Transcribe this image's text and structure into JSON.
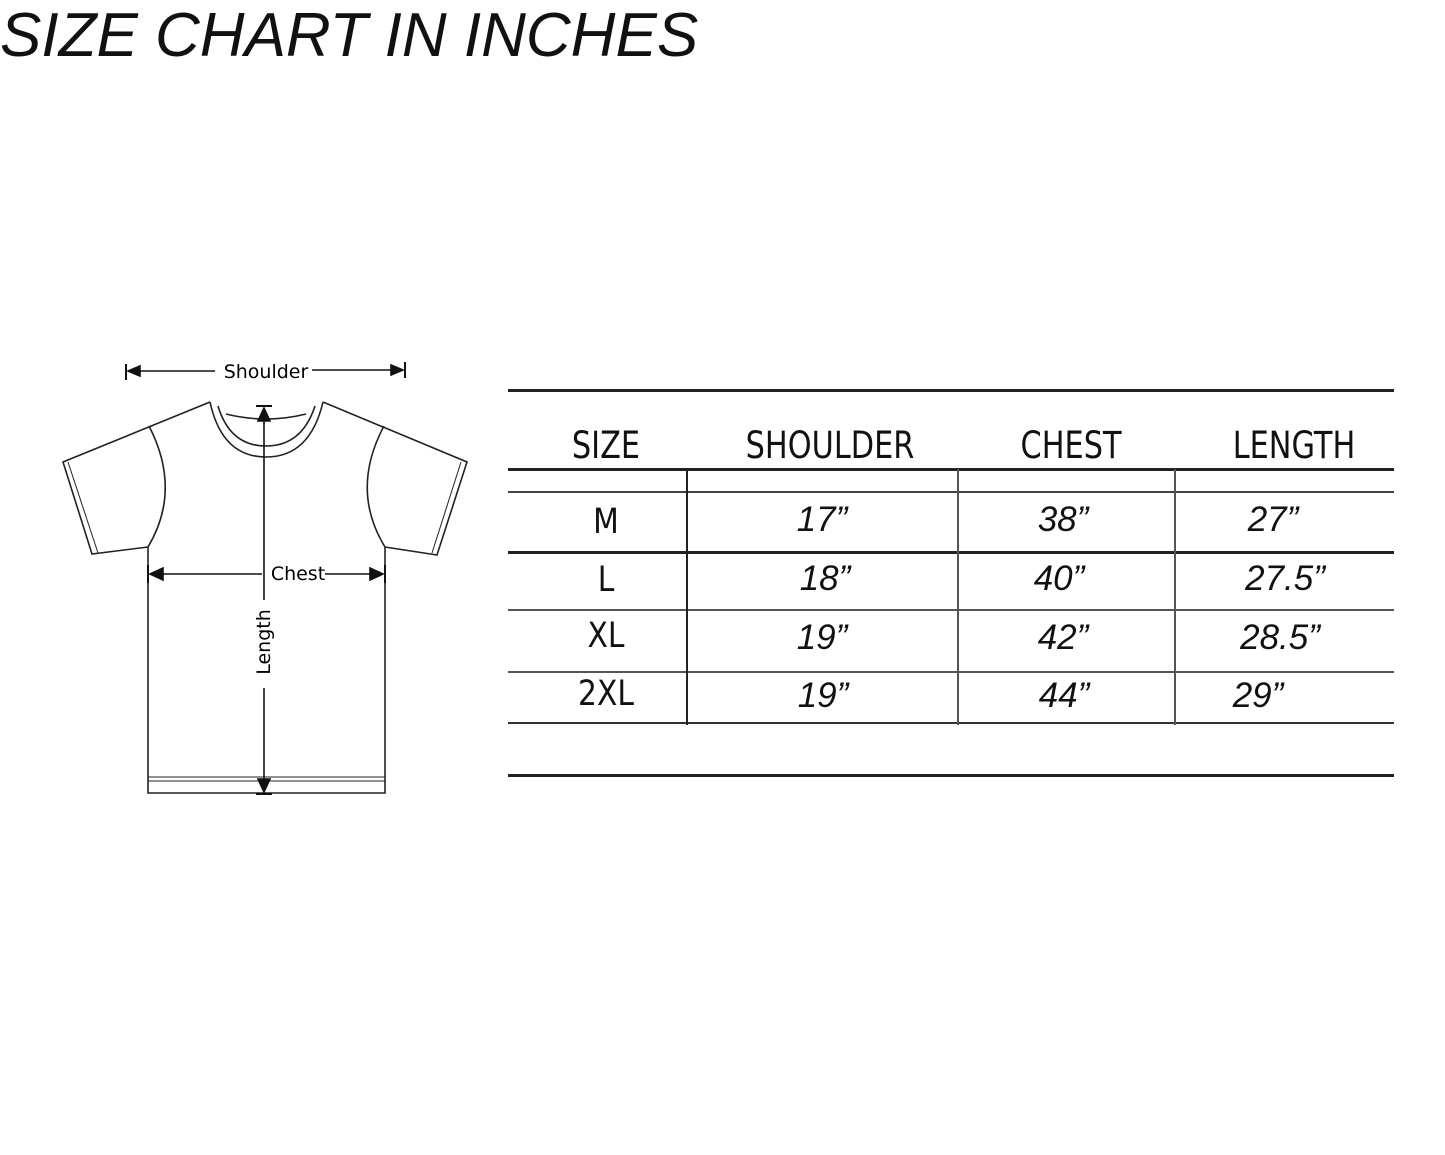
{
  "title": "SIZE CHART IN INCHES",
  "diagram": {
    "shoulder_label": "Shoulder",
    "chest_label": "Chest",
    "length_label": "Length"
  },
  "table": {
    "headers": [
      "SIZE",
      "SHOULDER",
      "CHEST",
      "LENGTH"
    ],
    "rows": [
      {
        "size": "M",
        "shoulder": "17”",
        "chest": "38”",
        "length": "27”"
      },
      {
        "size": "L",
        "shoulder": "18”",
        "chest": "40”",
        "length": "27.5”"
      },
      {
        "size": "XL",
        "shoulder": "19”",
        "chest": "42”",
        "length": "28.5”"
      },
      {
        "size": "2XL",
        "shoulder": "19”",
        "chest": "44”",
        "length": "29”"
      }
    ]
  }
}
